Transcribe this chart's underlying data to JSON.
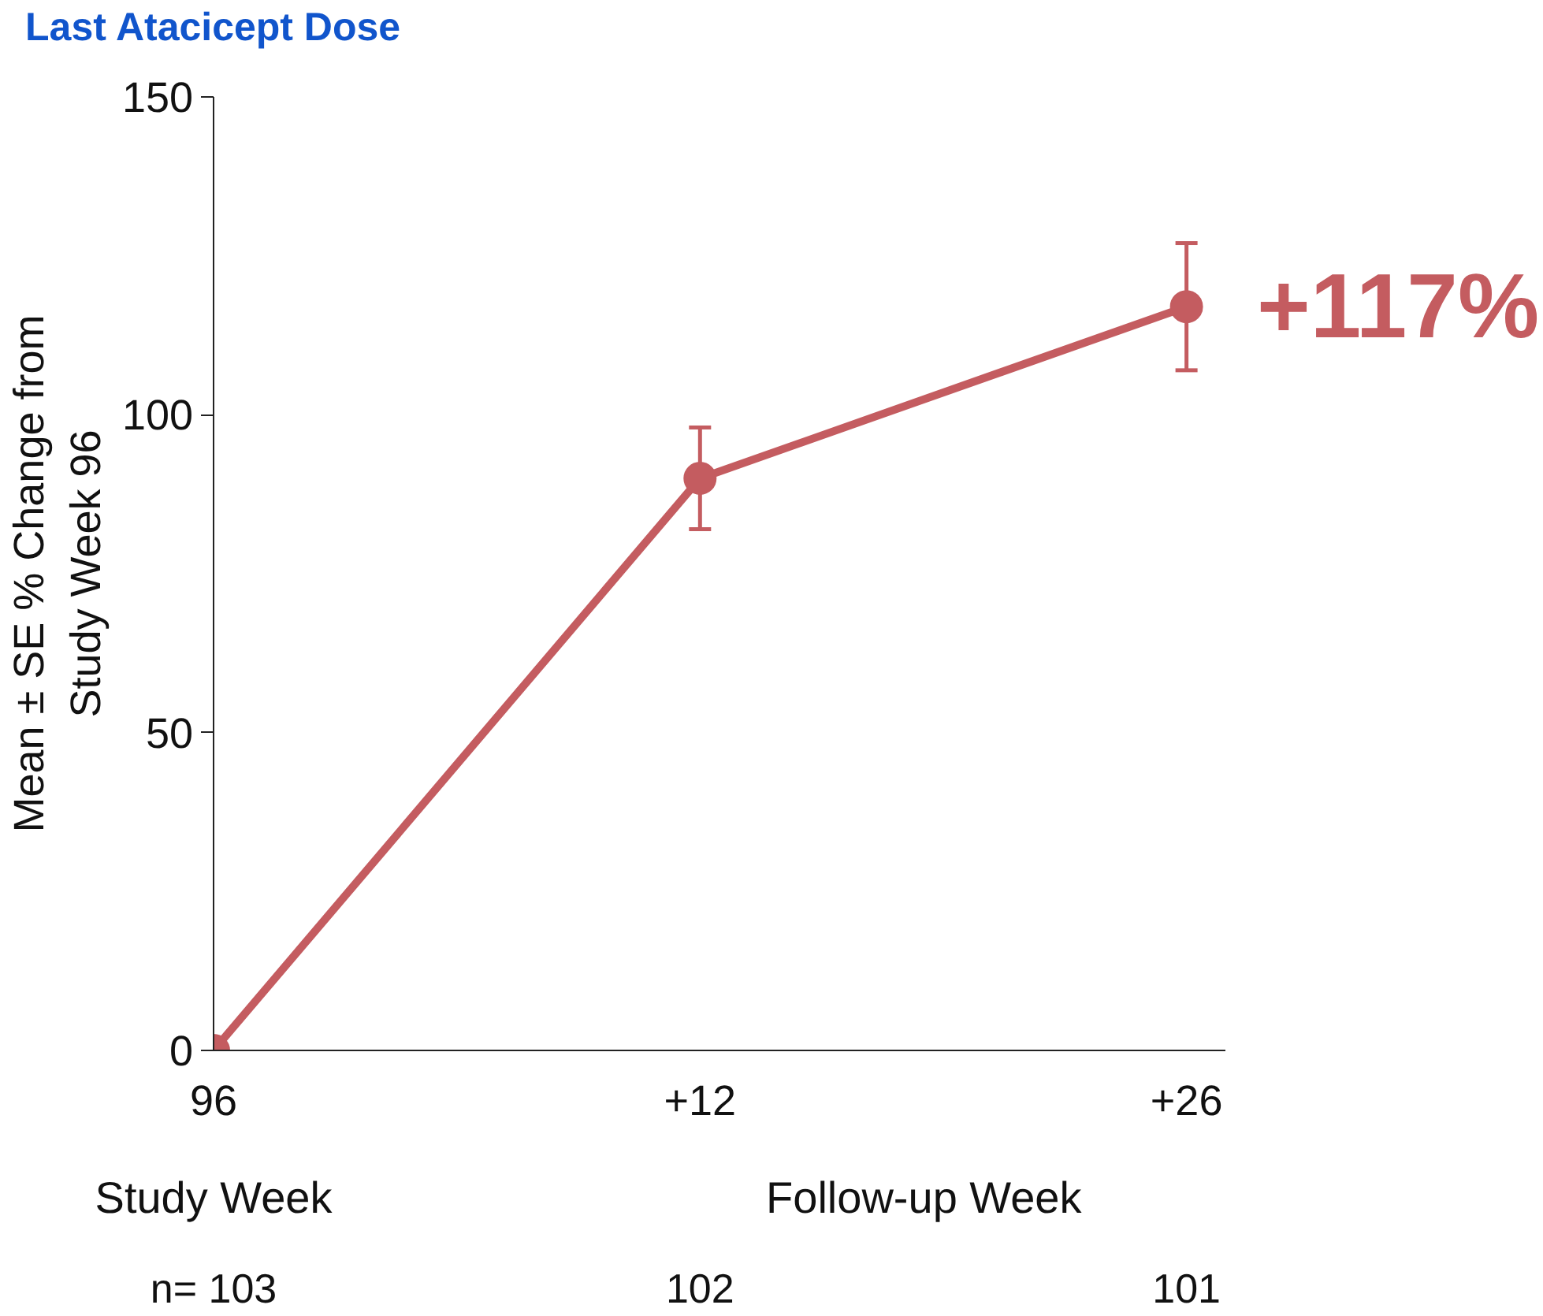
{
  "chart_data": {
    "type": "line",
    "ylabel": "Mean ± SE % Change from\nStudy Week 96",
    "categories": [
      "96",
      "+12",
      "+26"
    ],
    "values": [
      0,
      90,
      117
    ],
    "errors": [
      null,
      8,
      10
    ],
    "color": "#c45c60",
    "ylim": [
      0,
      150
    ],
    "yticks": [
      0,
      50,
      100,
      150
    ],
    "marker": "circle",
    "line_style": "solid",
    "grid": false,
    "annotations": [
      "Last Atacicept Dose",
      {
        "text": "+117%",
        "x": "+26",
        "y": 117
      },
      "Study Week",
      "Follow-up Week",
      "n= 103",
      "102",
      "101"
    ]
  }
}
